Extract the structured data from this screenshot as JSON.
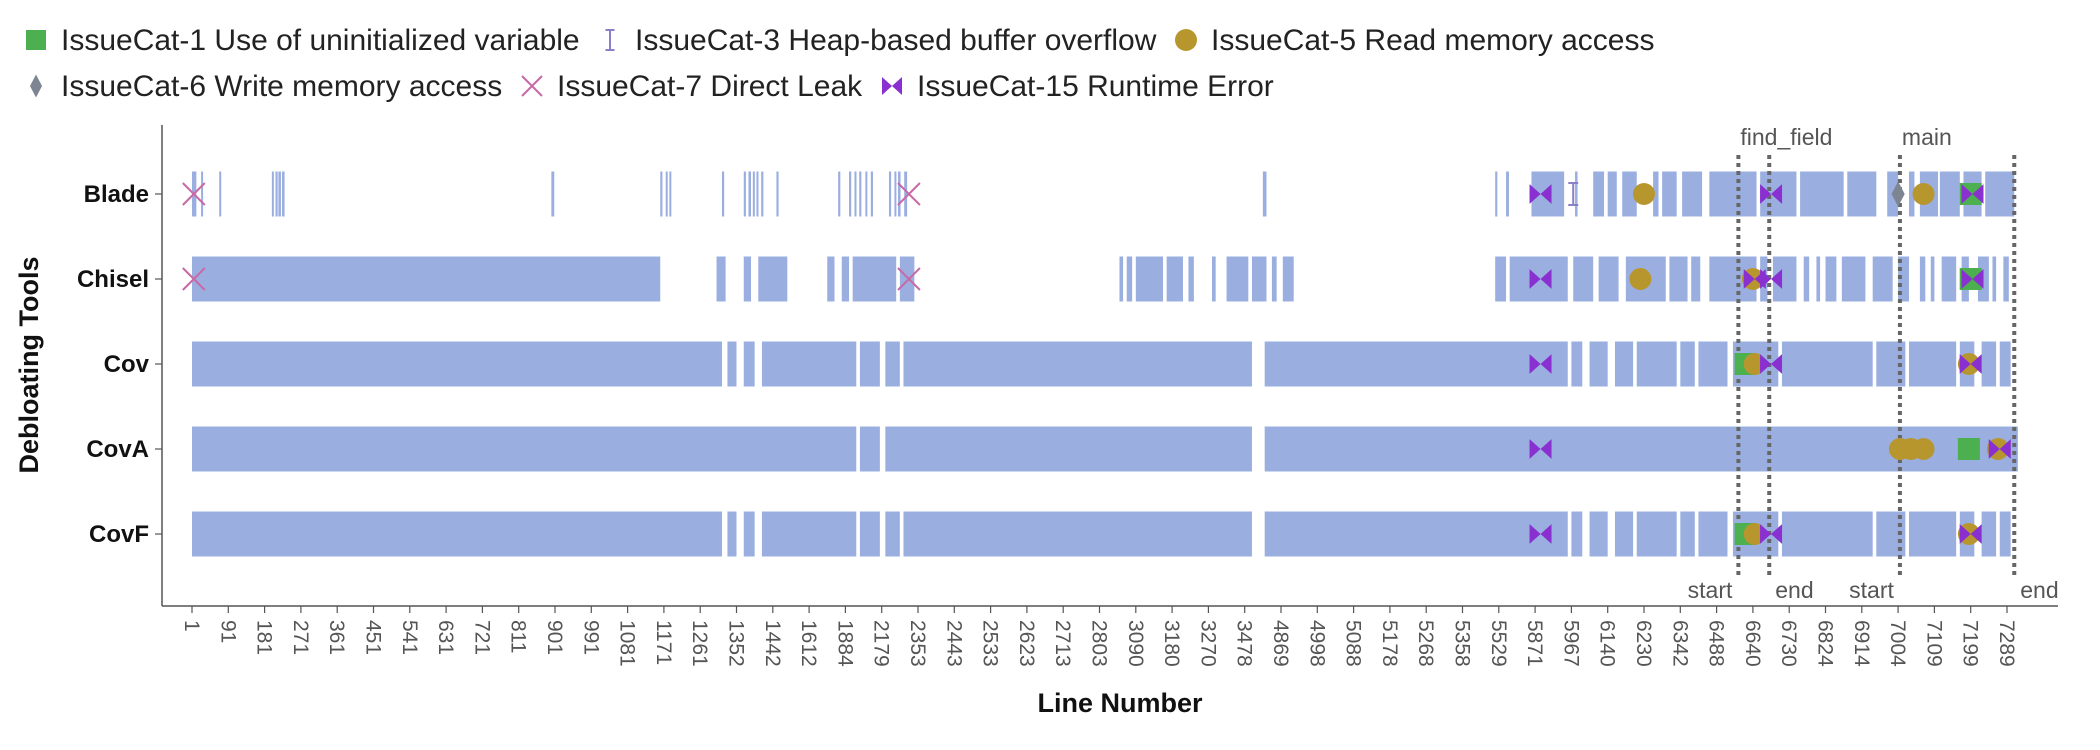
{
  "chart_data": {
    "type": "strip",
    "xlabel": "Line Number",
    "ylabel": "Debloating Tools",
    "tools": [
      "Blade",
      "Chisel",
      "Cov",
      "CovA",
      "CovF"
    ],
    "tick_labels": [
      "1",
      "91",
      "181",
      "271",
      "361",
      "451",
      "541",
      "631",
      "721",
      "811",
      "901",
      "991",
      "1081",
      "1171",
      "1261",
      "1352",
      "1442",
      "1612",
      "1884",
      "2179",
      "2353",
      "2443",
      "2533",
      "2623",
      "2713",
      "2803",
      "3090",
      "3180",
      "3270",
      "3478",
      "4869",
      "4998",
      "5088",
      "5178",
      "5268",
      "5358",
      "5529",
      "5871",
      "5967",
      "6140",
      "6230",
      "6342",
      "6488",
      "6640",
      "6730",
      "6824",
      "6914",
      "7004",
      "7109",
      "7199",
      "7289"
    ],
    "bar_color": "#9aafe0",
    "legend": [
      {
        "id": "cat1",
        "label": "IssueCat-1 Use of uninitialized variable",
        "color": "#4caf50",
        "marker": "square"
      },
      {
        "id": "cat3",
        "label": "IssueCat-3 Heap-based buffer overflow",
        "color": "#8a7fc8",
        "marker": "ibeam"
      },
      {
        "id": "cat5",
        "label": "IssueCat-5 Read memory access",
        "color": "#b8962e",
        "marker": "circle"
      },
      {
        "id": "cat6",
        "label": "IssueCat-6 Write memory access",
        "color": "#7d8593",
        "marker": "diamond"
      },
      {
        "id": "cat7",
        "label": "IssueCat-7 Direct Leak",
        "color": "#c86aa8",
        "marker": "x"
      },
      {
        "id": "cat15",
        "label": "IssueCat-15 Runtime Error",
        "color": "#8a2fd0",
        "marker": "bowtie"
      }
    ],
    "functions": [
      {
        "name": "find_field",
        "start_index": 42.6,
        "end_index": 43.45,
        "start_label": "start",
        "end_label": "end"
      },
      {
        "name": "main",
        "start_index": 47.05,
        "end_index": 50.2,
        "start_label": "start",
        "end_label": "end"
      }
    ],
    "segments": {
      "Blade": [
        [
          0,
          0.02
        ],
        [
          0.05,
          0.12
        ],
        [
          0.25,
          0.3
        ],
        [
          0.75,
          0.8
        ],
        [
          2.2,
          2.25
        ],
        [
          2.3,
          2.36
        ],
        [
          2.38,
          2.45
        ],
        [
          2.48,
          2.55
        ],
        [
          9.9,
          9.98
        ],
        [
          12.9,
          12.96
        ],
        [
          13.05,
          13.1
        ],
        [
          13.15,
          13.2
        ],
        [
          14.6,
          14.66
        ],
        [
          15.2,
          15.26
        ],
        [
          15.33,
          15.4
        ],
        [
          15.45,
          15.5
        ],
        [
          15.55,
          15.6
        ],
        [
          15.68,
          15.74
        ],
        [
          16.1,
          16.16
        ],
        [
          17.8,
          17.86
        ],
        [
          18.1,
          18.16
        ],
        [
          18.25,
          18.3
        ],
        [
          18.38,
          18.44
        ],
        [
          18.55,
          18.6
        ],
        [
          18.7,
          18.76
        ],
        [
          19.2,
          19.26
        ],
        [
          19.35,
          19.4
        ],
        [
          19.45,
          19.52
        ],
        [
          19.62,
          19.7
        ],
        [
          29.5,
          29.6
        ],
        [
          35.9,
          35.96
        ],
        [
          36.2,
          36.28
        ],
        [
          36.9,
          37.8
        ],
        [
          38.1,
          38.17
        ],
        [
          38.6,
          38.9
        ],
        [
          39.0,
          39.25
        ],
        [
          39.4,
          39.8
        ],
        [
          40.25,
          40.4
        ],
        [
          40.5,
          40.9
        ],
        [
          41.05,
          41.6
        ],
        [
          41.8,
          43.1
        ],
        [
          43.2,
          44.2
        ],
        [
          44.3,
          45.5
        ],
        [
          45.6,
          46.4
        ],
        [
          46.7,
          47.0
        ],
        [
          47.3,
          47.45
        ],
        [
          47.6,
          48.1
        ],
        [
          48.15,
          48.7
        ],
        [
          48.8,
          49.3
        ],
        [
          49.4,
          50.2
        ]
      ],
      "Chisel": [
        [
          0,
          12.9
        ],
        [
          14.45,
          14.7
        ],
        [
          15.2,
          15.4
        ],
        [
          15.6,
          16.4
        ],
        [
          17.5,
          17.7
        ],
        [
          17.9,
          18.1
        ],
        [
          18.2,
          19.4
        ],
        [
          19.5,
          19.9
        ],
        [
          25.55,
          25.65
        ],
        [
          25.75,
          25.9
        ],
        [
          26.0,
          26.75
        ],
        [
          26.85,
          27.3
        ],
        [
          27.45,
          27.6
        ],
        [
          28.1,
          28.2
        ],
        [
          28.5,
          29.1
        ],
        [
          29.2,
          29.6
        ],
        [
          29.75,
          29.88
        ],
        [
          30.05,
          30.35
        ],
        [
          35.9,
          36.2
        ],
        [
          36.3,
          37.9
        ],
        [
          38.05,
          38.6
        ],
        [
          38.75,
          39.3
        ],
        [
          39.5,
          40.6
        ],
        [
          40.7,
          41.2
        ],
        [
          41.3,
          41.55
        ],
        [
          41.8,
          43.1
        ],
        [
          43.2,
          43.4
        ],
        [
          43.55,
          44.2
        ],
        [
          44.4,
          44.55
        ],
        [
          44.75,
          44.85
        ],
        [
          45.0,
          45.3
        ],
        [
          45.45,
          46.1
        ],
        [
          46.3,
          46.85
        ],
        [
          47.0,
          47.3
        ],
        [
          47.6,
          47.75
        ],
        [
          47.9,
          48.0
        ],
        [
          48.2,
          48.6
        ],
        [
          48.75,
          48.95
        ],
        [
          49.2,
          49.5
        ],
        [
          49.6,
          49.7
        ],
        [
          49.9,
          50.05
        ]
      ],
      "Cov": [
        [
          0,
          14.6
        ],
        [
          14.75,
          15.0
        ],
        [
          15.2,
          15.5
        ],
        [
          15.7,
          18.3
        ],
        [
          18.4,
          18.95
        ],
        [
          19.1,
          19.5
        ],
        [
          19.6,
          29.2
        ],
        [
          29.55,
          37.9
        ],
        [
          38.0,
          38.3
        ],
        [
          38.5,
          39.0
        ],
        [
          39.2,
          39.7
        ],
        [
          39.8,
          40.9
        ],
        [
          41.0,
          41.4
        ],
        [
          41.5,
          42.3
        ],
        [
          42.45,
          43.7
        ],
        [
          43.8,
          46.3
        ],
        [
          46.4,
          47.2
        ],
        [
          47.3,
          48.6
        ],
        [
          48.7,
          49.1
        ],
        [
          49.3,
          49.7
        ],
        [
          49.8,
          50.1
        ]
      ],
      "CovA": [
        [
          0,
          18.3
        ],
        [
          18.4,
          18.95
        ],
        [
          19.1,
          29.2
        ],
        [
          29.55,
          50.3
        ]
      ],
      "CovF": [
        [
          0,
          14.6
        ],
        [
          14.75,
          15.0
        ],
        [
          15.2,
          15.5
        ],
        [
          15.7,
          18.3
        ],
        [
          18.4,
          18.95
        ],
        [
          19.1,
          19.5
        ],
        [
          19.6,
          29.2
        ],
        [
          29.55,
          37.9
        ],
        [
          38.0,
          38.3
        ],
        [
          38.5,
          39.0
        ],
        [
          39.2,
          39.7
        ],
        [
          39.8,
          40.9
        ],
        [
          41.0,
          41.4
        ],
        [
          41.5,
          42.3
        ],
        [
          42.45,
          43.7
        ],
        [
          43.8,
          46.3
        ],
        [
          46.4,
          47.2
        ],
        [
          47.3,
          48.6
        ],
        [
          48.7,
          49.1
        ],
        [
          49.3,
          49.7
        ],
        [
          49.8,
          50.1
        ]
      ]
    },
    "issues": [
      {
        "tool": "Blade",
        "index": 0.05,
        "cat": "cat7"
      },
      {
        "tool": "Blade",
        "index": 19.75,
        "cat": "cat7"
      },
      {
        "tool": "Blade",
        "index": 37.15,
        "cat": "cat15"
      },
      {
        "tool": "Blade",
        "index": 38.05,
        "cat": "cat3"
      },
      {
        "tool": "Blade",
        "index": 40.0,
        "cat": "cat5"
      },
      {
        "tool": "Blade",
        "index": 43.5,
        "cat": "cat15"
      },
      {
        "tool": "Blade",
        "index": 47.0,
        "cat": "cat6"
      },
      {
        "tool": "Blade",
        "index": 47.7,
        "cat": "cat5"
      },
      {
        "tool": "Blade",
        "index": 49.0,
        "cat": "cat1"
      },
      {
        "tool": "Blade",
        "index": 49.05,
        "cat": "cat15"
      },
      {
        "tool": "Chisel",
        "index": 0.05,
        "cat": "cat7"
      },
      {
        "tool": "Chisel",
        "index": 19.75,
        "cat": "cat7"
      },
      {
        "tool": "Chisel",
        "index": 37.15,
        "cat": "cat15"
      },
      {
        "tool": "Chisel",
        "index": 39.9,
        "cat": "cat5"
      },
      {
        "tool": "Chisel",
        "index": 43.0,
        "cat": "cat5"
      },
      {
        "tool": "Chisel",
        "index": 43.05,
        "cat": "cat15"
      },
      {
        "tool": "Chisel",
        "index": 43.5,
        "cat": "cat15"
      },
      {
        "tool": "Chisel",
        "index": 49.0,
        "cat": "cat1"
      },
      {
        "tool": "Chisel",
        "index": 49.05,
        "cat": "cat15"
      },
      {
        "tool": "Cov",
        "index": 37.15,
        "cat": "cat15"
      },
      {
        "tool": "Cov",
        "index": 42.8,
        "cat": "cat1"
      },
      {
        "tool": "Cov",
        "index": 43.05,
        "cat": "cat5"
      },
      {
        "tool": "Cov",
        "index": 43.5,
        "cat": "cat15"
      },
      {
        "tool": "Cov",
        "index": 48.95,
        "cat": "cat5"
      },
      {
        "tool": "Cov",
        "index": 49.0,
        "cat": "cat15"
      },
      {
        "tool": "CovA",
        "index": 37.15,
        "cat": "cat15"
      },
      {
        "tool": "CovA",
        "index": 47.05,
        "cat": "cat5"
      },
      {
        "tool": "CovA",
        "index": 47.35,
        "cat": "cat5"
      },
      {
        "tool": "CovA",
        "index": 47.7,
        "cat": "cat5"
      },
      {
        "tool": "CovA",
        "index": 48.95,
        "cat": "cat1"
      },
      {
        "tool": "CovA",
        "index": 49.75,
        "cat": "cat5"
      },
      {
        "tool": "CovA",
        "index": 49.8,
        "cat": "cat15"
      },
      {
        "tool": "CovF",
        "index": 37.15,
        "cat": "cat15"
      },
      {
        "tool": "CovF",
        "index": 42.8,
        "cat": "cat1"
      },
      {
        "tool": "CovF",
        "index": 43.05,
        "cat": "cat5"
      },
      {
        "tool": "CovF",
        "index": 43.5,
        "cat": "cat15"
      },
      {
        "tool": "CovF",
        "index": 48.95,
        "cat": "cat5"
      },
      {
        "tool": "CovF",
        "index": 49.0,
        "cat": "cat15"
      }
    ]
  }
}
